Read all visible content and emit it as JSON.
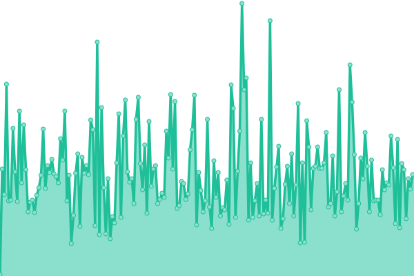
{
  "chart_data": {
    "type": "area",
    "title": "",
    "xlabel": "",
    "ylabel": "",
    "ylim": [
      0,
      400
    ],
    "grid": false,
    "legend": "none",
    "markers": true,
    "colors": {
      "line": "#1fbf99",
      "fill": "#8ae0cd",
      "marker_fill": "#8ae0cd",
      "marker_stroke": "#1fbf99"
    },
    "values": [
      2,
      155,
      118,
      278,
      109,
      110,
      214,
      151,
      108,
      239,
      135,
      219,
      154,
      93,
      107,
      110,
      92,
      117,
      128,
      146,
      213,
      127,
      160,
      150,
      169,
      148,
      144,
      135,
      199,
      168,
      239,
      109,
      146,
      47,
      88,
      149,
      177,
      72,
      172,
      149,
      160,
      147,
      226,
      212,
      73,
      339,
      60,
      244,
      128,
      61,
      141,
      54,
      86,
      77,
      164,
      235,
      85,
      203,
      255,
      151,
      136,
      141,
      105,
      227,
      259,
      163,
      125,
      190,
      91,
      224,
      130,
      155,
      160,
      105,
      111,
      120,
      114,
      210,
      171,
      263,
      155,
      253,
      98,
      102,
      137,
      134,
      111,
      119,
      183,
      212,
      262,
      74,
      150,
      124,
      93,
      109,
      227,
      100,
      69,
      167,
      114,
      150,
      87,
      99,
      96,
      139,
      75,
      277,
      243,
      85,
      152,
      210,
      395,
      270,
      287,
      81,
      164,
      85,
      109,
      134,
      87,
      227,
      90,
      110,
      91,
      370,
      81,
      127,
      158,
      188,
      69,
      83,
      133,
      159,
      105,
      177,
      87,
      132,
      250,
      48,
      164,
      49,
      225,
      187,
      96,
      156,
      159,
      187,
      156,
      156,
      164,
      208,
      100,
      105,
      174,
      87,
      122,
      270,
      93,
      116,
      134,
      110,
      306,
      252,
      176,
      68,
      105,
      171,
      141,
      208,
      159,
      93,
      168,
      109,
      110,
      110,
      89,
      154,
      125,
      135,
      132,
      203,
      157,
      76,
      198,
      70,
      163,
      154,
      83,
      141,
      126,
      147
    ]
  }
}
